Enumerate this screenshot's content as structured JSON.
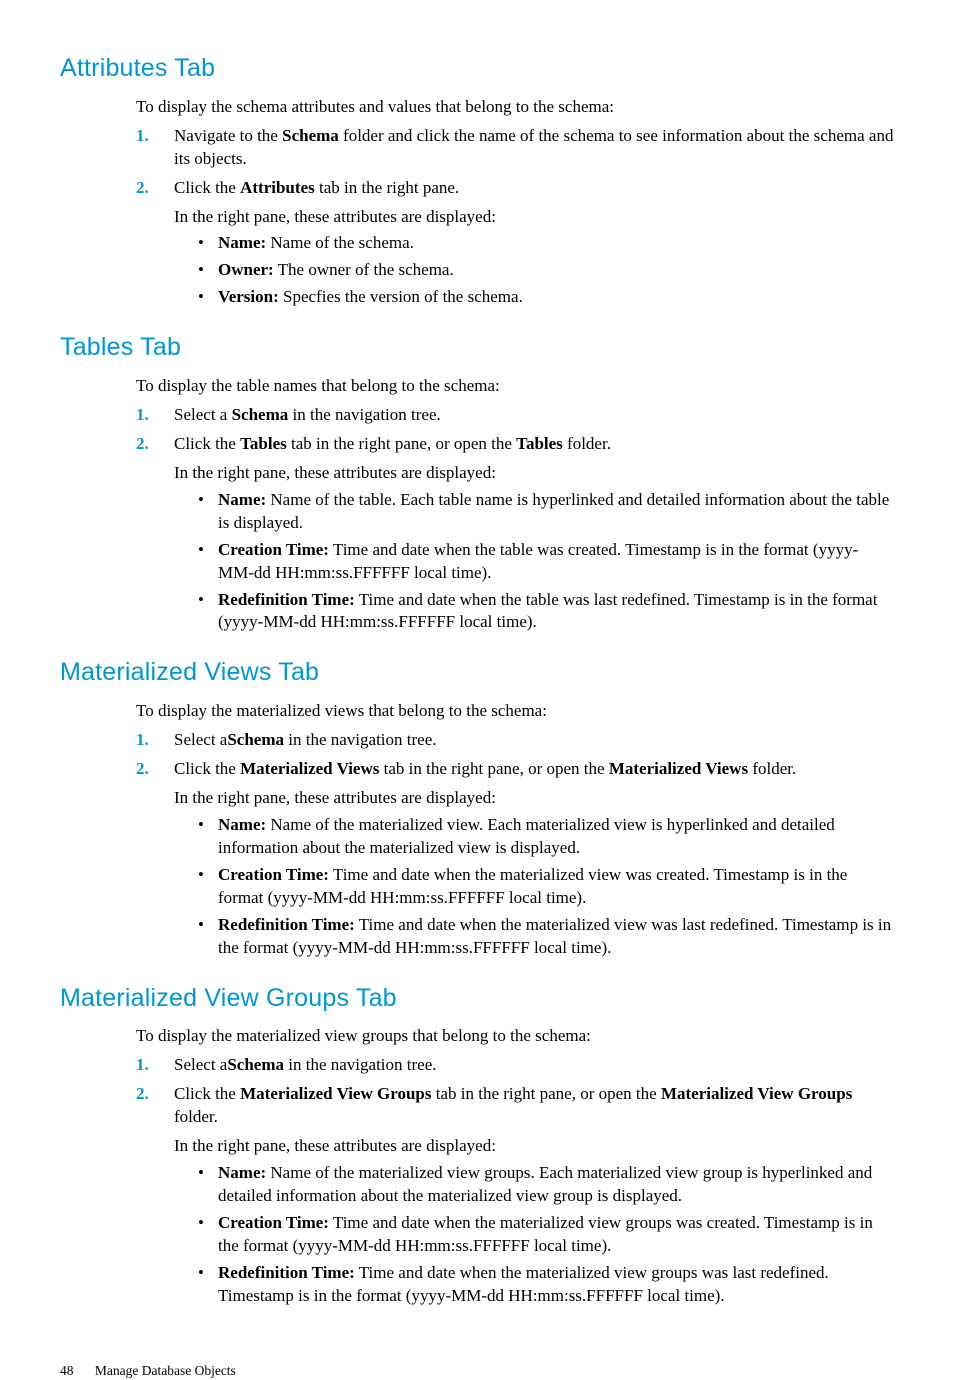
{
  "colors": {
    "heading": "#0096d6",
    "list_number": "#0096d6",
    "body_text": "#000000",
    "background": "#ffffff"
  },
  "typography": {
    "heading_family": "Futura / sans-serif",
    "heading_fontsize_pt": 19,
    "body_family": "Palatino / serif",
    "body_fontsize_pt": 12.5,
    "footer_fontsize_pt": 10
  },
  "sections": [
    {
      "heading": "Attributes Tab",
      "intro": "To display the schema attributes and values that belong to the schema:",
      "steps": [
        {
          "n": "1.",
          "parts": [
            {
              "t": "Navigate to the "
            },
            {
              "t": "Schema",
              "b": true
            },
            {
              "t": " folder and click the name of the schema to see information about the schema and its objects."
            }
          ]
        },
        {
          "n": "2.",
          "parts": [
            {
              "t": "Click the "
            },
            {
              "t": "Attributes",
              "b": true
            },
            {
              "t": " tab in the right pane."
            }
          ],
          "sub_intro": "In the right pane, these attributes are displayed:",
          "bullets": [
            [
              {
                "t": "Name:",
                "b": true
              },
              {
                "t": " Name of the schema."
              }
            ],
            [
              {
                "t": "Owner:",
                "b": true
              },
              {
                "t": " The owner of the schema."
              }
            ],
            [
              {
                "t": "Version:",
                "b": true
              },
              {
                "t": " Specfies the version of the schema."
              }
            ]
          ]
        }
      ]
    },
    {
      "heading": "Tables Tab",
      "intro": "To display the table names that belong to the schema:",
      "steps": [
        {
          "n": "1.",
          "parts": [
            {
              "t": "Select a "
            },
            {
              "t": "Schema",
              "b": true
            },
            {
              "t": " in the navigation tree."
            }
          ]
        },
        {
          "n": "2.",
          "parts": [
            {
              "t": "Click the "
            },
            {
              "t": "Tables",
              "b": true
            },
            {
              "t": " tab in the right pane, or open the "
            },
            {
              "t": "Tables",
              "b": true
            },
            {
              "t": " folder."
            }
          ],
          "sub_intro": "In the right pane, these attributes are displayed:",
          "bullets": [
            [
              {
                "t": "Name:",
                "b": true
              },
              {
                "t": " Name of the table. Each table name is hyperlinked and detailed information about the table is displayed."
              }
            ],
            [
              {
                "t": "Creation Time:",
                "b": true
              },
              {
                "t": " Time and date when the table was created. Timestamp is in the format (yyyy-MM-dd HH:mm:ss.FFFFFF local time)."
              }
            ],
            [
              {
                "t": "Redefinition Time:",
                "b": true
              },
              {
                "t": " Time and date when the table was last redefined. Timestamp is in the format (yyyy-MM-dd HH:mm:ss.FFFFFF local time)."
              }
            ]
          ]
        }
      ]
    },
    {
      "heading": "Materialized Views Tab",
      "intro": "To display the materialized views that belong to the schema:",
      "steps": [
        {
          "n": "1.",
          "parts": [
            {
              "t": "Select a"
            },
            {
              "t": "Schema",
              "b": true
            },
            {
              "t": " in the navigation tree."
            }
          ]
        },
        {
          "n": "2.",
          "parts": [
            {
              "t": "Click the "
            },
            {
              "t": "Materialized Views",
              "b": true
            },
            {
              "t": " tab in the right pane, or open the "
            },
            {
              "t": "Materialized Views",
              "b": true
            },
            {
              "t": " folder."
            }
          ],
          "sub_intro": "In the right pane, these attributes are displayed:",
          "bullets": [
            [
              {
                "t": "Name:",
                "b": true
              },
              {
                "t": " Name of the materialized view. Each materialized view is hyperlinked and detailed information about the materialized view is displayed."
              }
            ],
            [
              {
                "t": "Creation Time:",
                "b": true
              },
              {
                "t": " Time and date when the materialized view was created. Timestamp is in the format (yyyy-MM-dd HH:mm:ss.FFFFFF local time)."
              }
            ],
            [
              {
                "t": "Redefinition Time:",
                "b": true
              },
              {
                "t": " Time and date when the materialized view was last redefined. Timestamp is in the format (yyyy-MM-dd HH:mm:ss.FFFFFF local time)."
              }
            ]
          ]
        }
      ]
    },
    {
      "heading": "Materialized View Groups Tab",
      "intro": "To display the materialized view groups that belong to the schema:",
      "steps": [
        {
          "n": "1.",
          "parts": [
            {
              "t": "Select a"
            },
            {
              "t": "Schema",
              "b": true
            },
            {
              "t": " in the navigation tree."
            }
          ]
        },
        {
          "n": "2.",
          "parts": [
            {
              "t": "Click the "
            },
            {
              "t": "Materialized View Groups",
              "b": true
            },
            {
              "t": " tab in the right pane, or open the "
            },
            {
              "t": "Materialized View Groups",
              "b": true
            },
            {
              "t": " folder."
            }
          ],
          "sub_intro": "In the right pane, these attributes are displayed:",
          "bullets": [
            [
              {
                "t": "Name:",
                "b": true
              },
              {
                "t": " Name of the materialized view groups. Each materialized view group is hyperlinked and detailed information about the materialized view group is displayed."
              }
            ],
            [
              {
                "t": "Creation Time:",
                "b": true
              },
              {
                "t": " Time and date when the materialized view groups was created. Timestamp is in the format (yyyy-MM-dd HH:mm:ss.FFFFFF local time)."
              }
            ],
            [
              {
                "t": "Redefinition Time:",
                "b": true
              },
              {
                "t": " Time and date when the materialized view groups was last redefined. Timestamp is in the format (yyyy-MM-dd HH:mm:ss.FFFFFF local time)."
              }
            ]
          ]
        }
      ]
    }
  ],
  "footer": {
    "page_number": "48",
    "chapter": "Manage Database Objects"
  }
}
